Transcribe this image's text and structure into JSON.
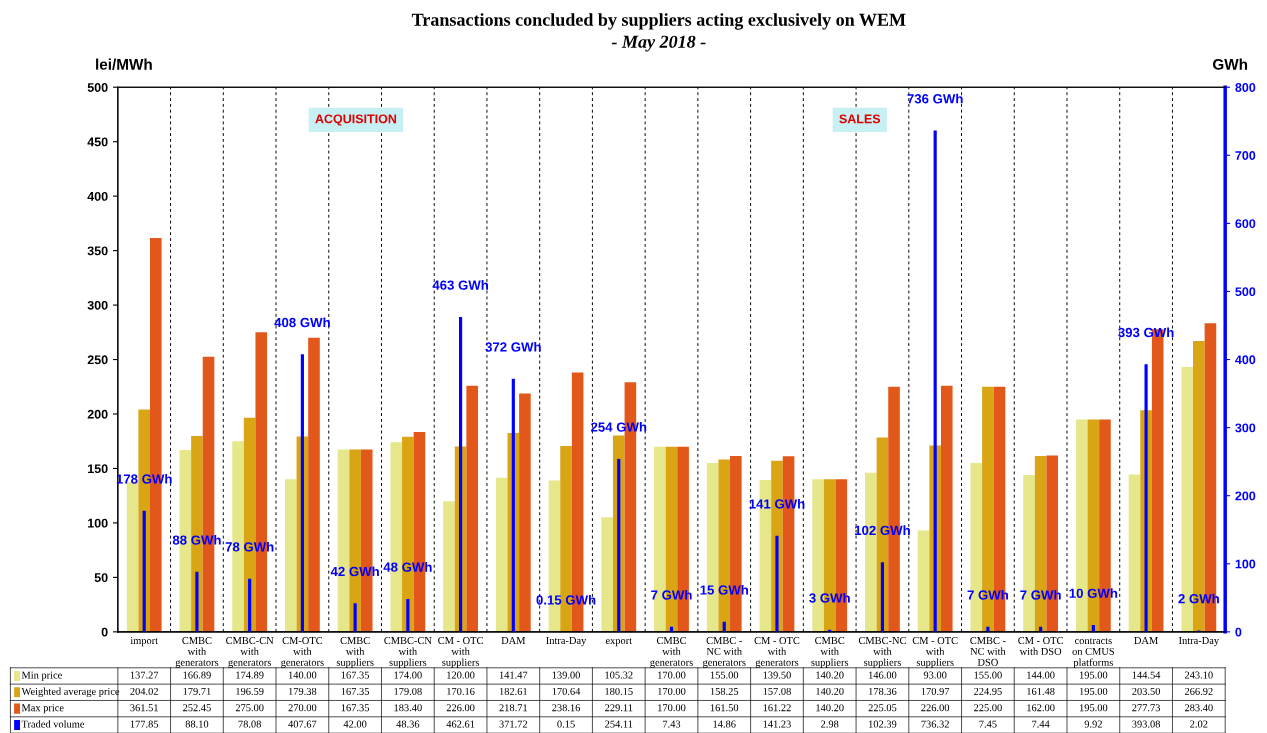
{
  "chart_data": {
    "type": "bar",
    "title": "Transactions concluded by suppliers acting exclusively on WEM",
    "subtitle": "- May 2018 -",
    "ylabel": "lei/MWh",
    "y2label": "GWh",
    "categories": [
      "import",
      "CMBC\nwith\ngenerators",
      "CMBC-CN\nwith\ngenerators",
      "CM-OTC\nwith\ngenerators",
      "CMBC\nwith\nsuppliers",
      "CMBC-CN\nwith\nsuppliers",
      "CM - OTC\nwith\nsuppliers",
      "DAM",
      "Intra-Day",
      "export",
      "CMBC\nwith\ngenerators",
      "CMBC -\nNC with\ngenerators",
      "CM - OTC\nwith\ngenerators",
      "CMBC\nwith\nsuppliers",
      "CMBC-NC\nwith\nsuppliers",
      "CM - OTC\nwith\nsuppliers",
      "CMBC -\nNC with\nDSO",
      "CM - OTC\nwith DSO",
      "contracts\non CMUS\nplatforms",
      "DAM",
      "Intra-Day"
    ],
    "series": [
      {
        "name": "Min price",
        "color": "#e6e68a",
        "values": [
          137.27,
          166.89,
          174.89,
          140.0,
          167.35,
          174.0,
          120.0,
          141.47,
          139.0,
          105.32,
          170.0,
          155.0,
          139.5,
          140.2,
          146.0,
          93.0,
          155.0,
          144.0,
          195.0,
          144.54,
          243.1
        ],
        "value_labels": [
          "137.27",
          "166.89",
          "174.89",
          "140.00",
          "167.35",
          "174.00",
          "120.00",
          "141.47",
          "139.00",
          "105.32",
          "170.00",
          "155.00",
          "139.50",
          "140.20",
          "146.00",
          "93.00",
          "155.00",
          "144.00",
          "195.00",
          "144.54",
          "243.10"
        ]
      },
      {
        "name": "Weighted average price",
        "color": "#d9a514",
        "values": [
          204.02,
          179.71,
          196.59,
          179.38,
          167.35,
          179.08,
          170.16,
          182.61,
          170.64,
          180.15,
          170.0,
          158.25,
          157.08,
          140.2,
          178.36,
          170.97,
          224.95,
          161.48,
          195.0,
          203.5,
          266.92
        ],
        "value_labels": [
          "204.02",
          "179.71",
          "196.59",
          "179.38",
          "167.35",
          "179.08",
          "170.16",
          "182.61",
          "170.64",
          "180.15",
          "170.00",
          "158.25",
          "157.08",
          "140.20",
          "178.36",
          "170.97",
          "224.95",
          "161.48",
          "195.00",
          "203.50",
          "266.92"
        ]
      },
      {
        "name": "Max price",
        "color": "#e2581a",
        "values": [
          361.51,
          252.45,
          275.0,
          270.0,
          167.35,
          183.4,
          226.0,
          218.71,
          238.16,
          229.11,
          170.0,
          161.5,
          161.22,
          140.2,
          225.05,
          226.0,
          225.0,
          162.0,
          195.0,
          277.73,
          283.4
        ],
        "value_labels": [
          "361.51",
          "252.45",
          "275.00",
          "270.00",
          "167.35",
          "183.40",
          "226.00",
          "218.71",
          "238.16",
          "229.11",
          "170.00",
          "161.50",
          "161.22",
          "140.20",
          "225.05",
          "226.00",
          "225.00",
          "162.00",
          "195.00",
          "277.73",
          "283.40"
        ]
      },
      {
        "name": "Traded volume",
        "color": "#0000ff",
        "axis": "y2",
        "values": [
          177.85,
          88.1,
          78.08,
          407.67,
          42.0,
          48.36,
          462.61,
          371.72,
          0.15,
          254.11,
          7.43,
          14.86,
          141.23,
          2.98,
          102.39,
          736.32,
          7.45,
          7.44,
          9.92,
          393.08,
          2.02
        ],
        "value_labels": [
          "177.85",
          "88.10",
          "78.08",
          "407.67",
          "42.00",
          "48.36",
          "462.61",
          "371.72",
          "0.15",
          "254.11",
          "7.43",
          "14.86",
          "141.23",
          "2.98",
          "102.39",
          "736.32",
          "7.45",
          "7.44",
          "9.92",
          "393.08",
          "2.02"
        ]
      }
    ],
    "ylim": [
      0,
      500
    ],
    "yticks": [
      0,
      50,
      100,
      150,
      200,
      250,
      300,
      350,
      400,
      450,
      500
    ],
    "y2lim": [
      0,
      800
    ],
    "y2ticks": [
      0,
      100,
      200,
      300,
      400,
      500,
      600,
      700,
      800
    ],
    "annotations": [
      "ACQUISITION",
      "SALES",
      "178 GWh",
      "88 GWh",
      "78 GWh",
      "408 GWh",
      "42 GWh",
      "48 GWh",
      "463 GWh",
      "372 GWh",
      "0.15 GWh",
      "254 GWh",
      "7 GWh",
      "15 GWh",
      "141 GWh",
      "3 GWh",
      "102 GWh",
      "736 GWh",
      "7 GWh",
      "7 GWh",
      "10 GWh",
      "393 GWh",
      "2 GWh"
    ],
    "data_labels": true,
    "grid": "x",
    "legend": "bottom"
  }
}
